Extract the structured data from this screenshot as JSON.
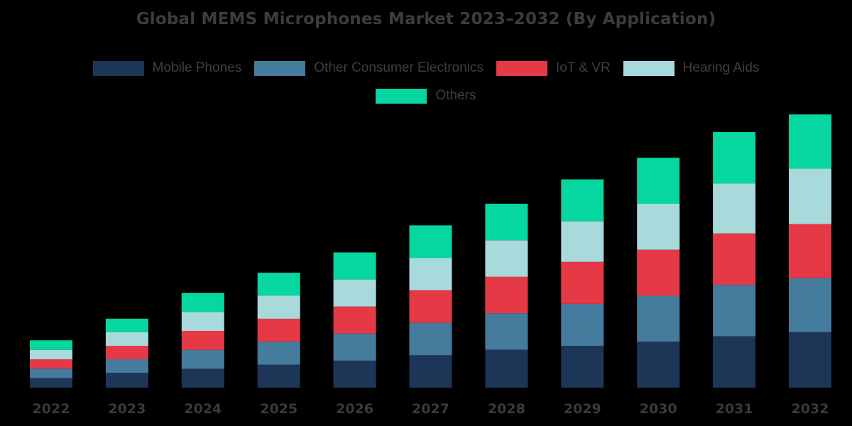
{
  "chart_data": {
    "type": "bar",
    "stacked": true,
    "title": "Global MEMS Microphones Market 2023–2032 (By Application)",
    "xlabel": "",
    "ylabel": "",
    "categories": [
      "2022",
      "2023",
      "2024",
      "2025",
      "2026",
      "2027",
      "2028",
      "2029",
      "2030",
      "2031",
      "2032"
    ],
    "ylim": [
      0,
      100
    ],
    "grid": false,
    "legend_position": "top",
    "series": [
      {
        "name": "Mobile Phones",
        "color": "#1d3557",
        "values": [
          3.5,
          5.5,
          7,
          8.5,
          10,
          12,
          14,
          15.5,
          17,
          19,
          20.5
        ]
      },
      {
        "name": "Other Consumer Electronics",
        "color": "#457b9d",
        "values": [
          3.5,
          5,
          7,
          8.5,
          10,
          12,
          13.5,
          15.5,
          17,
          19,
          20
        ]
      },
      {
        "name": "IoT & VR",
        "color": "#e63946",
        "values": [
          3.5,
          5,
          7,
          8.5,
          10,
          12,
          13.5,
          15.5,
          17,
          19,
          20
        ]
      },
      {
        "name": "Hearing Aids",
        "color": "#a8dadc",
        "values": [
          3.5,
          5,
          7,
          8.5,
          10,
          12,
          13.5,
          15,
          17,
          18.5,
          20.5
        ]
      },
      {
        "name": "Others",
        "color": "#06d6a0",
        "values": [
          3.5,
          5,
          7,
          8.5,
          10,
          12,
          13.5,
          15.5,
          17,
          19,
          20
        ]
      }
    ]
  }
}
